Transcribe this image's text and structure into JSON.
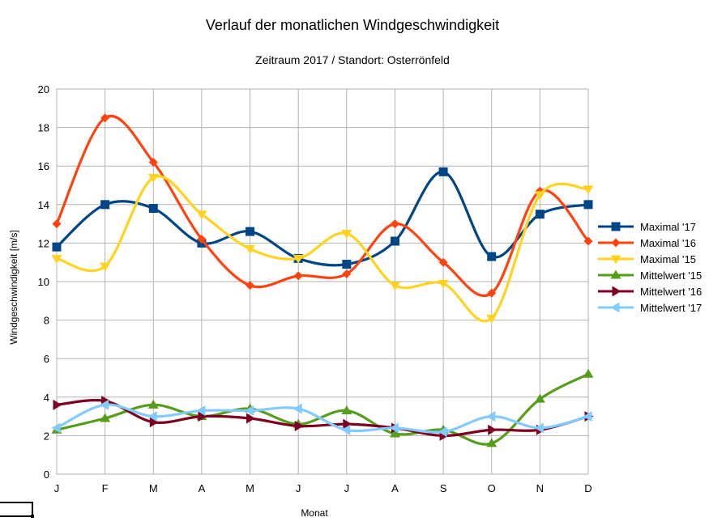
{
  "chart_data": {
    "type": "line",
    "title": "Verlauf der monatlichen Windgeschwindigkeit",
    "subtitle": "Zeitraum 2017 / Standort: Osterrönfeld",
    "xlabel": "Monat",
    "ylabel": "Windgeschwindigkeit [m/s]",
    "ylim": [
      0,
      20
    ],
    "yticks": [
      0,
      2,
      4,
      6,
      8,
      10,
      12,
      14,
      16,
      18,
      20
    ],
    "grid": "horizontal+vertical",
    "smoothed": true,
    "legend_position": "right",
    "categories": [
      "J",
      "F",
      "M",
      "A",
      "M",
      "J",
      "J",
      "A",
      "S",
      "O",
      "N",
      "D"
    ],
    "series": [
      {
        "name": "Maximal '17",
        "color": "#004586",
        "marker": "square",
        "values": [
          11.8,
          14.0,
          13.8,
          12.0,
          12.6,
          11.2,
          10.9,
          12.1,
          15.7,
          11.3,
          13.5,
          14.0
        ]
      },
      {
        "name": "Maximal '16",
        "color": "#ff420e",
        "marker": "diamond",
        "values": [
          13.0,
          18.5,
          16.2,
          12.2,
          9.8,
          10.3,
          10.4,
          13.0,
          11.0,
          9.4,
          14.7,
          12.1
        ]
      },
      {
        "name": "Maximal '15",
        "color": "#ffd320",
        "marker": "triangle-down",
        "values": [
          11.2,
          10.8,
          15.4,
          13.5,
          11.7,
          11.2,
          12.5,
          9.8,
          9.9,
          8.1,
          14.5,
          14.8
        ]
      },
      {
        "name": "Mittelwert '15",
        "color": "#579d1c",
        "marker": "triangle-up",
        "values": [
          2.3,
          2.9,
          3.6,
          3.0,
          3.4,
          2.6,
          3.3,
          2.1,
          2.3,
          1.6,
          3.9,
          5.2
        ]
      },
      {
        "name": "Mittelwert '16",
        "color": "#7e0021",
        "marker": "triangle-right",
        "values": [
          3.6,
          3.8,
          2.7,
          3.0,
          2.9,
          2.5,
          2.6,
          2.4,
          2.0,
          2.3,
          2.3,
          3.0
        ]
      },
      {
        "name": "Mittelwert '17",
        "color": "#83caff",
        "marker": "triangle-left",
        "values": [
          2.4,
          3.6,
          3.0,
          3.3,
          3.3,
          3.4,
          2.3,
          2.4,
          2.2,
          3.0,
          2.4,
          3.0
        ]
      }
    ]
  }
}
